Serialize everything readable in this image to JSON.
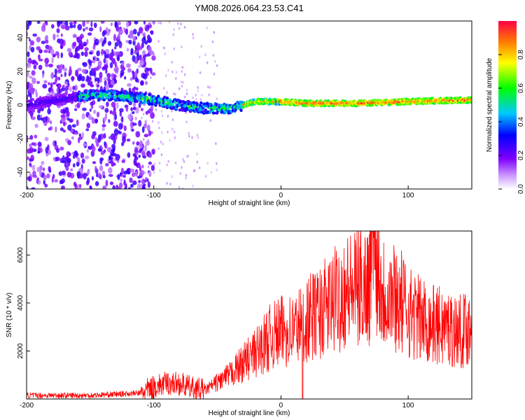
{
  "title": "YM08.2026.064.23.53.C41",
  "chart_data": [
    {
      "type": "heatmap",
      "xlabel": "Height of straight line (km)",
      "ylabel": "Frequency (Hz)",
      "xlim": [
        -200,
        150
      ],
      "ylim": [
        -50,
        50
      ],
      "x_ticks": [
        -200,
        -100,
        0,
        100
      ],
      "y_ticks": [
        -40,
        -20,
        0,
        20,
        40
      ],
      "colorbar": {
        "label": "Normalized spectral amplitude",
        "range": [
          0,
          1
        ],
        "ticks": [
          0.0,
          0.2,
          0.4,
          0.6,
          0.8
        ],
        "tick_labels": [
          "0.0",
          "0.2",
          "0.4",
          "0.6",
          "0.8"
        ],
        "colormap": [
          "#ffffff",
          "#8000ff",
          "#0000ff",
          "#00c0ff",
          "#00ff00",
          "#ffff00",
          "#ff8000",
          "#ff0000"
        ]
      },
      "ridge": {
        "description": "spectral ridge frequency vs height",
        "x": [
          -200,
          -150,
          -120,
          -100,
          -80,
          -60,
          -40,
          -30,
          -20,
          0,
          20,
          60,
          100,
          150
        ],
        "y": [
          0,
          6,
          5,
          3,
          0,
          -2,
          -2,
          0,
          2,
          2,
          1,
          1,
          2,
          3
        ]
      }
    },
    {
      "type": "line",
      "xlabel": "Height of straight line (km)",
      "ylabel": "SNR (10 * v/v)",
      "xlim": [
        -200,
        150
      ],
      "ylim": [
        0,
        7000
      ],
      "x_ticks": [
        -200,
        -100,
        0,
        100
      ],
      "y_ticks": [
        2000,
        4000,
        6000
      ],
      "series": [
        {
          "name": "SNR",
          "color": "#ff0000",
          "x": [
            -200,
            -150,
            -110,
            -100,
            -90,
            -80,
            -70,
            -60,
            -50,
            -40,
            -30,
            -20,
            -10,
            0,
            10,
            20,
            30,
            40,
            50,
            60,
            70,
            72,
            80,
            90,
            100,
            110,
            120,
            130,
            140,
            150
          ],
          "y": [
            150,
            150,
            250,
            500,
            650,
            650,
            450,
            350,
            700,
            1000,
            1500,
            1900,
            2500,
            2800,
            2900,
            3300,
            3600,
            4000,
            4500,
            4600,
            4900,
            6700,
            4500,
            4300,
            3700,
            3300,
            3100,
            3000,
            2800,
            3000
          ]
        }
      ]
    }
  ]
}
